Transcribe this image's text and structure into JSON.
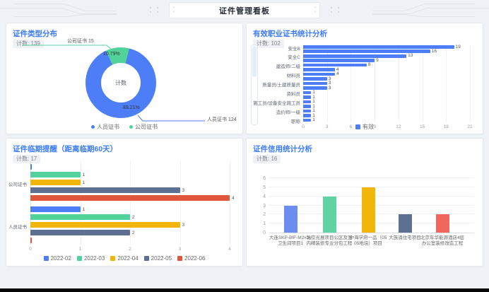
{
  "page": {
    "title": "证件管理看板"
  },
  "chart_data": [
    {
      "id": "cert-type-distribution",
      "type": "pie",
      "title": "证件类型分布",
      "badge": "计数: 139",
      "total": 139,
      "center_label": "计数",
      "slices": [
        {
          "label": "人员证书",
          "value": 124,
          "percent": "89.21%",
          "color": "#4d7ef7"
        },
        {
          "label": "公司证书",
          "value": 15,
          "percent": "10.79%",
          "color": "#52d29b"
        }
      ],
      "callouts": {
        "top": "公司证书 15",
        "bottom": "人员证书 124"
      },
      "legend_position": "bottom"
    },
    {
      "id": "valid-professional-certs",
      "type": "bar",
      "orientation": "horizontal",
      "title": "有效职业证书统计分析",
      "badge": "计数: 102",
      "series_name": "有效",
      "color": "#4d7ef7",
      "categories": [
        "安全B",
        "",
        "安全C",
        "",
        "建造师/二级",
        "",
        "材料员",
        "",
        "质量员/土建质量员",
        "",
        "资料员",
        "",
        "施工员/设备安全施工员",
        "",
        "造价师/一级",
        "",
        "职称"
      ],
      "values": [
        19,
        16,
        13,
        9,
        8,
        4,
        4,
        3,
        3,
        3,
        1,
        1,
        1,
        1,
        1,
        1,
        1
      ],
      "xlim": [
        0,
        21
      ],
      "xticks": [
        0,
        3,
        6,
        9,
        12,
        15,
        18,
        21
      ],
      "has_scrollbar": true,
      "legend_position": "bottom"
    },
    {
      "id": "cert-expiry-reminder",
      "type": "bar",
      "orientation": "horizontal-grouped",
      "title": "证件临期提醒（距离临期60天）",
      "badge": "计数: 17",
      "categories": [
        "公司证书",
        "人员证书"
      ],
      "series": [
        {
          "name": "2022-02",
          "color": "#4d7ef7",
          "values": [
            0,
            1
          ]
        },
        {
          "name": "2022-03",
          "color": "#52d29b",
          "values": [
            1,
            2
          ]
        },
        {
          "name": "2022-04",
          "color": "#f2b60a",
          "values": [
            1,
            3
          ]
        },
        {
          "name": "2022-05",
          "color": "#5d7092",
          "values": [
            3,
            2
          ]
        },
        {
          "name": "2022-06",
          "color": "#e0563c",
          "values": [
            4,
            0
          ]
        }
      ],
      "xlim": [
        0,
        4
      ],
      "xticks": [
        0,
        1,
        2,
        3,
        4
      ],
      "legend_position": "bottom"
    },
    {
      "id": "cert-credit-analysis",
      "type": "bar",
      "orientation": "vertical",
      "title": "证件信用统计分析",
      "badge": "计数: 16",
      "categories": [
        [
          "大连SKP-BIF-M2#3#",
          "卫生间项目1"
        ],
        [
          "北京光展项目公区及室",
          "内精装修专业分包工程"
        ],
        [
          "中海学府一品（05",
          "05地块）项目"
        ],
        [
          "大族涌住宅项目"
        ],
        [
          "北京年华能源酒店4层",
          "办公室装修改造工程"
        ]
      ],
      "values": [
        3,
        4,
        5,
        2,
        2
      ],
      "colors": [
        "#6b8df0",
        "#5fd3a2",
        "#f2b60a",
        "#5d7092",
        "#f0685c"
      ],
      "ylim": [
        0,
        6
      ],
      "yticks": [
        0,
        1,
        2,
        3,
        4,
        5,
        6
      ],
      "grid": true
    }
  ]
}
